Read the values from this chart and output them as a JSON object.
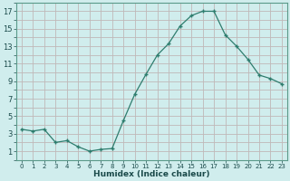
{
  "x": [
    0,
    1,
    2,
    3,
    4,
    5,
    6,
    7,
    8,
    9,
    10,
    11,
    12,
    13,
    14,
    15,
    16,
    17,
    18,
    19,
    20,
    21,
    22,
    23
  ],
  "y": [
    3.5,
    3.3,
    3.5,
    2.0,
    2.2,
    1.5,
    1.0,
    1.2,
    1.3,
    4.5,
    7.5,
    9.8,
    12.0,
    13.3,
    15.3,
    16.5,
    17.0,
    17.0,
    14.3,
    13.0,
    11.5,
    9.7,
    9.3,
    8.7
  ],
  "line_color": "#2e7d6e",
  "marker": "+",
  "bg_color": "#d0eded",
  "grid_color": "#c0b8b8",
  "xlabel": "Humidex (Indice chaleur)",
  "xlim": [
    -0.5,
    23.5
  ],
  "ylim": [
    0,
    18
  ],
  "yticks": [
    1,
    3,
    5,
    7,
    9,
    11,
    13,
    15,
    17
  ],
  "xticks": [
    0,
    1,
    2,
    3,
    4,
    5,
    6,
    7,
    8,
    9,
    10,
    11,
    12,
    13,
    14,
    15,
    16,
    17,
    18,
    19,
    20,
    21,
    22,
    23
  ],
  "all_yticks": [
    0,
    1,
    2,
    3,
    4,
    5,
    6,
    7,
    8,
    9,
    10,
    11,
    12,
    13,
    14,
    15,
    16,
    17,
    18
  ]
}
